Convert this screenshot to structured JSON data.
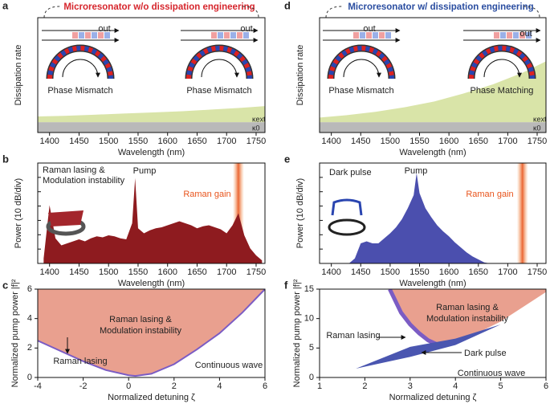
{
  "chart_data": [
    {
      "panel": "a",
      "type": "stacked_area",
      "title": "Microresonator w/o dissipation engineering",
      "title_color": "#d6262d",
      "xlabel": "Wavelength (nm)",
      "ylabel": "Dissipation rate",
      "xlim": [
        1380,
        1765
      ],
      "ylim": [
        0,
        10
      ],
      "xticks": [
        1400,
        1450,
        1500,
        1550,
        1600,
        1650,
        1700,
        1750
      ],
      "x": [
        1380,
        1425,
        1475,
        1525,
        1575,
        1625,
        1675,
        1725,
        1765
      ],
      "series": [
        {
          "name": "κ0",
          "color": "#b9b9b9",
          "values": [
            0.9,
            0.9,
            0.9,
            0.9,
            0.9,
            0.9,
            0.9,
            0.9,
            0.9
          ]
        },
        {
          "name": "κext",
          "color": "#d9e4a8",
          "values": [
            0.5,
            0.55,
            0.65,
            0.75,
            0.85,
            0.95,
            1.1,
            1.25,
            1.4
          ]
        }
      ],
      "annotations": [
        "out",
        "out",
        "Phase Mismatch",
        "Phase Mismatch"
      ]
    },
    {
      "panel": "b",
      "type": "spectrum",
      "xlabel": "Wavelength (nm)",
      "ylabel": "Power (10 dB/div)",
      "xlim": [
        1380,
        1765
      ],
      "ylim": [
        0,
        100
      ],
      "xticks": [
        1400,
        1450,
        1500,
        1550,
        1600,
        1650,
        1700,
        1750
      ],
      "x": [
        1390,
        1400,
        1410,
        1420,
        1430,
        1440,
        1450,
        1460,
        1470,
        1480,
        1490,
        1500,
        1510,
        1520,
        1530,
        1540,
        1545,
        1550,
        1560,
        1570,
        1580,
        1590,
        1600,
        1610,
        1620,
        1630,
        1640,
        1650,
        1660,
        1670,
        1680,
        1690,
        1700,
        1710,
        1720,
        1730,
        1740,
        1750,
        1760
      ],
      "values": [
        5,
        58,
        25,
        18,
        20,
        22,
        24,
        22,
        25,
        27,
        26,
        28,
        27,
        25,
        24,
        40,
        85,
        35,
        30,
        33,
        35,
        36,
        38,
        40,
        42,
        40,
        38,
        35,
        37,
        38,
        36,
        34,
        30,
        38,
        50,
        28,
        15,
        8,
        3
      ],
      "color": "#8e1b1f",
      "raman_gain_x": 1720,
      "annotations": [
        "Raman lasing &",
        "Modulation instability",
        "Pump",
        "Raman gain"
      ]
    },
    {
      "panel": "c",
      "type": "region",
      "xlabel": "Normalized detuning ζ",
      "ylabel": "Normalized pump power |f|²",
      "xlim": [
        -4,
        6
      ],
      "ylim": [
        0,
        6
      ],
      "xticks": [
        -4,
        -2,
        0,
        2,
        4,
        6
      ],
      "yticks": [
        0,
        2,
        4,
        6
      ],
      "x": [
        -4,
        -3,
        -2,
        -1,
        0,
        0.3,
        1,
        2,
        3,
        4,
        5,
        6
      ],
      "values": [
        2.5,
        1.8,
        1.1,
        0.5,
        0.15,
        0.1,
        0.25,
        0.9,
        1.9,
        3.0,
        4.4,
        6.0
      ],
      "color": "#e9a08f",
      "line_color": "#7b5cc4",
      "annotations": [
        "Raman lasing &",
        "Modulation instability",
        "Raman lasing",
        "Continuous wave"
      ]
    },
    {
      "panel": "d",
      "type": "stacked_area",
      "title": "Microresonator w/ dissipation engineering",
      "title_color": "#2a4da0",
      "xlabel": "Wavelength (nm)",
      "ylabel": "Dissipation rate",
      "xlim": [
        1380,
        1765
      ],
      "ylim": [
        0,
        10
      ],
      "xticks": [
        1400,
        1450,
        1500,
        1550,
        1600,
        1650,
        1700,
        1750
      ],
      "x": [
        1380,
        1425,
        1475,
        1525,
        1575,
        1625,
        1675,
        1725,
        1765
      ],
      "series": [
        {
          "name": "κ0",
          "color": "#b9b9b9",
          "values": [
            0.9,
            0.9,
            0.9,
            0.9,
            0.9,
            0.9,
            0.9,
            0.9,
            0.9
          ]
        },
        {
          "name": "κext",
          "color": "#d9e4a8",
          "values": [
            0.4,
            0.6,
            0.9,
            1.3,
            1.8,
            2.5,
            3.3,
            4.3,
            5.3
          ]
        }
      ],
      "annotations": [
        "out",
        "out",
        "Phase Mismatch",
        "Phase Matching"
      ]
    },
    {
      "panel": "e",
      "type": "spectrum",
      "xlabel": "Wavelength (nm)",
      "ylabel": "Power (10 dB/div)",
      "xlim": [
        1380,
        1765
      ],
      "ylim": [
        0,
        100
      ],
      "xticks": [
        1400,
        1450,
        1500,
        1550,
        1600,
        1650,
        1700,
        1750
      ],
      "x": [
        1390,
        1400,
        1410,
        1420,
        1430,
        1440,
        1450,
        1460,
        1470,
        1480,
        1490,
        1500,
        1510,
        1520,
        1530,
        1540,
        1545,
        1550,
        1560,
        1570,
        1580,
        1590,
        1600,
        1610,
        1620,
        1630,
        1640,
        1650,
        1660,
        1670,
        1680,
        1690,
        1700,
        1710,
        1720,
        1730,
        1740,
        1750,
        1760
      ],
      "values": [
        0,
        0,
        0,
        0,
        0,
        5,
        20,
        22,
        20,
        20,
        25,
        30,
        36,
        44,
        55,
        68,
        90,
        70,
        55,
        46,
        38,
        32,
        27,
        21,
        16,
        11,
        7,
        4,
        1,
        0,
        0,
        0,
        0,
        0,
        0,
        0,
        0,
        0,
        0
      ],
      "color": "#4b4fae",
      "raman_gain_x": 1725,
      "annotations": [
        "Dark pulse",
        "Pump",
        "Raman gain"
      ]
    },
    {
      "panel": "f",
      "type": "region_pulse",
      "xlabel": "Normalized detuning ζ",
      "ylabel": "Normalized pump power |f|²",
      "xlim": [
        1,
        6
      ],
      "ylim": [
        0,
        15
      ],
      "xticks": [
        1,
        2,
        3,
        4,
        5,
        6
      ],
      "yticks": [
        0,
        5,
        10,
        15
      ],
      "x": [
        2.55,
        2.8,
        3.0,
        3.2,
        3.4,
        3.6,
        3.8,
        4.2,
        4.6,
        5.0,
        5.5,
        6.0
      ],
      "values": [
        15,
        11,
        9,
        7.5,
        6.3,
        5.6,
        5.8,
        6.8,
        8,
        9.5,
        12,
        14.5
      ],
      "color": "#e9a08f",
      "line_color": "#7b5cc4",
      "pulse_color": "#4a56b0",
      "dark_pulse": {
        "x": [
          1.8,
          3,
          4,
          5
        ],
        "lower": [
          1.5,
          3.5,
          5.5,
          9
        ],
        "upper": [
          1.5,
          5.2,
          6.6,
          9
        ]
      },
      "annotations": [
        "Raman lasing &",
        "Modulation instability",
        "Raman lasing",
        "Dark pulse",
        "Continuous wave"
      ]
    }
  ]
}
